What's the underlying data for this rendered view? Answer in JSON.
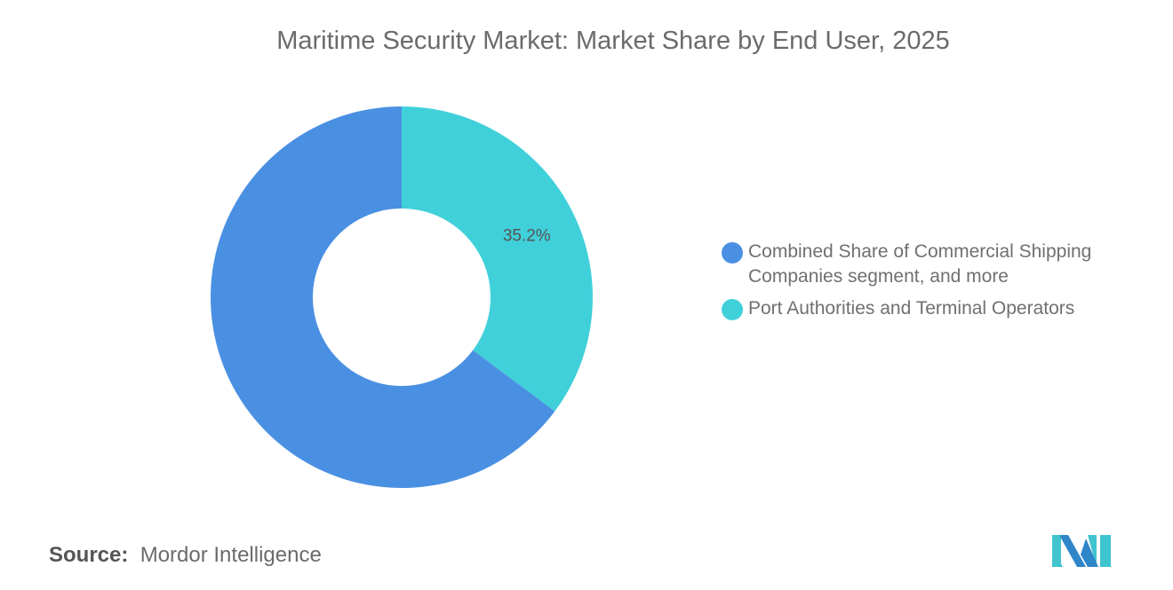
{
  "title": "Maritime Security Market: Market Share by End User, 2025",
  "chart_data": {
    "type": "pie",
    "variant": "donut",
    "title": "Maritime Security Market: Market Share by End User, 2025",
    "series": [
      {
        "name": "Port Authorities and Terminal Operators",
        "value": 35.2,
        "label": "35.2%",
        "color": "#40D0DA"
      },
      {
        "name": "Combined Share of Commercial Shipping Companies segment, and more",
        "value": 64.8,
        "label": "",
        "color": "#4A90E2"
      }
    ],
    "legend": {
      "placement": "right",
      "items": [
        {
          "label": "Combined Share of Commercial Shipping Companies segment, and more",
          "color": "#4A90E2"
        },
        {
          "label": "Port Authorities and Terminal Operators",
          "color": "#40D0DA"
        }
      ]
    }
  },
  "source": {
    "label": "Source:",
    "value": "Mordor Intelligence"
  },
  "logo": {
    "text": "Mordor Intelligence logo"
  }
}
